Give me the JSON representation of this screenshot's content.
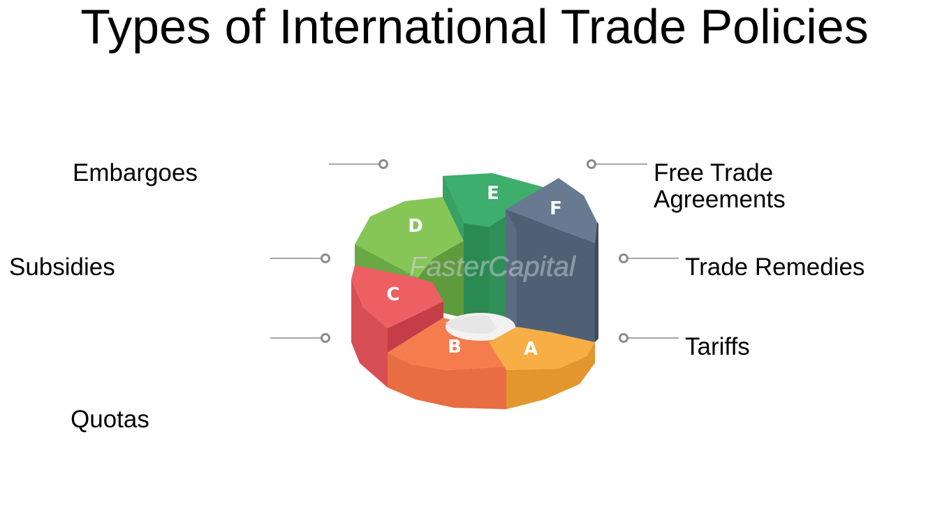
{
  "title": "Types of International Trade Policies",
  "labels": {
    "embargoes": "Embargoes",
    "subsidies": "Subsidies",
    "quotas": "Quotas",
    "fta_line1": "Free Trade",
    "fta_line2": "Agreements",
    "trade_remedies": "Trade Remedies",
    "tariffs": "Tariffs"
  },
  "segments": {
    "A": {
      "letter": "A",
      "color": "#F6AE45"
    },
    "B": {
      "letter": "B",
      "color": "#F57C4D"
    },
    "C": {
      "letter": "C",
      "color": "#EE5F63"
    },
    "D": {
      "letter": "D",
      "color": "#86C657"
    },
    "E": {
      "letter": "E",
      "color": "#3DAE6B"
    },
    "F": {
      "letter": "F",
      "color": "#677A91"
    }
  },
  "watermark": "FasterCapital",
  "connector_color": "#8a8a8a"
}
